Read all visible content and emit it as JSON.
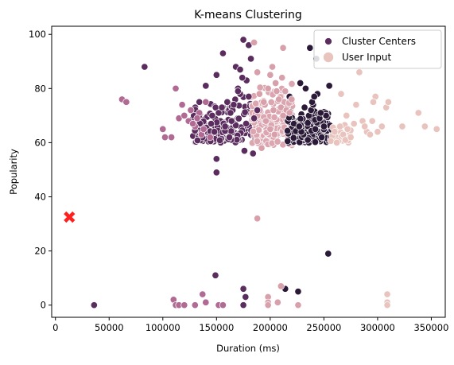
{
  "chart_data": {
    "type": "scatter",
    "title": "K-means Clustering",
    "xlabel": "Duration (ms)",
    "ylabel": "Popularity",
    "xlim": [
      -3500,
      363000
    ],
    "ylim": [
      -4.5,
      103
    ],
    "xticks": [
      0,
      50000,
      100000,
      150000,
      200000,
      250000,
      300000,
      350000
    ],
    "xtick_labels": [
      "0",
      "50000",
      "100000",
      "150000",
      "200000",
      "250000",
      "300000",
      "350000"
    ],
    "yticks": [
      0,
      20,
      40,
      60,
      80,
      100
    ],
    "ytick_labels": [
      "0",
      "20",
      "40",
      "60",
      "80",
      "100"
    ],
    "grid": false,
    "legend": {
      "placement": "top-right",
      "entries": [
        {
          "label": "Cluster Centers",
          "color": "#5b2d5e",
          "marker": "circle"
        },
        {
          "label": "User Input",
          "color": "#e9c3bd",
          "marker": "circle"
        }
      ]
    },
    "series": [
      {
        "cluster": 0,
        "color": "#2a1a38",
        "points": [
          [
            243000,
            91
          ],
          [
            236000,
            70
          ],
          [
            238000,
            72
          ],
          [
            240000,
            74
          ],
          [
            246000,
            69
          ],
          [
            244000,
            78
          ],
          [
            250000,
            66
          ],
          [
            252000,
            70
          ],
          [
            255000,
            81
          ],
          [
            232000,
            73
          ],
          [
            228000,
            82
          ],
          [
            218000,
            77
          ],
          [
            222000,
            67
          ],
          [
            242000,
            65
          ],
          [
            254000,
            19
          ],
          [
            226000,
            5
          ],
          [
            214000,
            6
          ],
          [
            247000,
            71
          ],
          [
            235000,
            61
          ],
          [
            248000,
            62
          ],
          [
            231000,
            63
          ],
          [
            229000,
            64
          ],
          [
            227000,
            66
          ],
          [
            239000,
            75
          ],
          [
            241000,
            77
          ],
          [
            237000,
            95
          ],
          [
            233000,
            80
          ]
        ]
      },
      {
        "cluster": 1,
        "color": "#5b2d5e",
        "points": [
          [
            140000,
            81
          ],
          [
            150000,
            85
          ],
          [
            156000,
            93
          ],
          [
            160000,
            75
          ],
          [
            165000,
            72
          ],
          [
            168000,
            88
          ],
          [
            170000,
            80
          ],
          [
            172000,
            78
          ],
          [
            175000,
            98
          ],
          [
            178000,
            83
          ],
          [
            180000,
            77
          ],
          [
            182000,
            91
          ],
          [
            176000,
            57
          ],
          [
            184000,
            56
          ],
          [
            150000,
            54
          ],
          [
            150000,
            49
          ],
          [
            148000,
            64
          ],
          [
            146000,
            70
          ],
          [
            152000,
            71
          ],
          [
            158000,
            66
          ],
          [
            162000,
            62
          ],
          [
            164000,
            68
          ],
          [
            166000,
            74
          ],
          [
            180000,
            96
          ],
          [
            174000,
            84
          ],
          [
            163000,
            71
          ],
          [
            155000,
            73
          ],
          [
            145000,
            67
          ],
          [
            185000,
            69
          ],
          [
            188000,
            72
          ],
          [
            83000,
            88
          ],
          [
            149000,
            11
          ],
          [
            175000,
            6
          ],
          [
            177000,
            3
          ],
          [
            36000,
            0
          ],
          [
            152000,
            0
          ],
          [
            175000,
            0
          ],
          [
            170000,
            79
          ],
          [
            172000,
            87
          ]
        ]
      },
      {
        "cluster": 2,
        "color": "#b06a93",
        "points": [
          [
            62000,
            76
          ],
          [
            66000,
            75
          ],
          [
            100000,
            65
          ],
          [
            102000,
            62
          ],
          [
            108000,
            62
          ],
          [
            112000,
            80
          ],
          [
            115000,
            69
          ],
          [
            118000,
            74
          ],
          [
            120000,
            70
          ],
          [
            124000,
            68
          ],
          [
            126000,
            72
          ],
          [
            130000,
            66
          ],
          [
            134000,
            71
          ],
          [
            136000,
            63
          ],
          [
            138000,
            65
          ],
          [
            140000,
            75
          ],
          [
            144000,
            62
          ],
          [
            110000,
            2
          ],
          [
            112000,
            0
          ],
          [
            115000,
            0
          ],
          [
            120000,
            0
          ],
          [
            130000,
            0
          ],
          [
            137000,
            4
          ],
          [
            140000,
            1
          ],
          [
            152000,
            0
          ],
          [
            156000,
            0
          ],
          [
            128000,
            67
          ],
          [
            132000,
            69
          ]
        ]
      },
      {
        "cluster": 3,
        "color": "#d8a0ab",
        "points": [
          [
            185000,
            97
          ],
          [
            188000,
            86
          ],
          [
            190000,
            78
          ],
          [
            195000,
            74
          ],
          [
            198000,
            80
          ],
          [
            200000,
            85
          ],
          [
            202000,
            88
          ],
          [
            205000,
            82
          ],
          [
            208000,
            76
          ],
          [
            210000,
            73
          ],
          [
            212000,
            95
          ],
          [
            215000,
            72
          ],
          [
            218000,
            71
          ],
          [
            220000,
            76
          ],
          [
            196000,
            68
          ],
          [
            200000,
            65
          ],
          [
            204000,
            63
          ],
          [
            188000,
            32
          ],
          [
            198000,
            3
          ],
          [
            198000,
            1
          ],
          [
            198000,
            0
          ],
          [
            210000,
            7
          ],
          [
            207000,
            1
          ],
          [
            226000,
            0
          ],
          [
            206000,
            79
          ],
          [
            212000,
            70
          ],
          [
            192000,
            58
          ],
          [
            194000,
            75
          ],
          [
            203000,
            72
          ],
          [
            211000,
            84
          ],
          [
            214000,
            79
          ]
        ]
      },
      {
        "cluster": 4,
        "color": "#e9c3bd",
        "points": [
          [
            260000,
            64
          ],
          [
            262000,
            60
          ],
          [
            265000,
            66
          ],
          [
            268000,
            63
          ],
          [
            270000,
            61
          ],
          [
            272000,
            65
          ],
          [
            275000,
            62
          ],
          [
            278000,
            67
          ],
          [
            280000,
            74
          ],
          [
            283000,
            86
          ],
          [
            286000,
            68
          ],
          [
            290000,
            64
          ],
          [
            293000,
            63
          ],
          [
            295000,
            68
          ],
          [
            298000,
            77
          ],
          [
            300000,
            64
          ],
          [
            304000,
            66
          ],
          [
            308000,
            73
          ],
          [
            310000,
            75
          ],
          [
            323000,
            66
          ],
          [
            338000,
            71
          ],
          [
            344000,
            66
          ],
          [
            355000,
            65
          ],
          [
            296000,
            75
          ],
          [
            309000,
            4
          ],
          [
            309000,
            1
          ],
          [
            309000,
            0
          ],
          [
            266000,
            78
          ],
          [
            271000,
            70
          ],
          [
            288000,
            66
          ]
        ]
      },
      {
        "cluster": "user",
        "color": "#ff2020",
        "marker": "X",
        "points": [
          [
            13000,
            32.5
          ]
        ]
      }
    ],
    "dense_regions": [
      {
        "cluster": 1,
        "color": "#5b2d5e",
        "x": [
          128000,
          190000
        ],
        "y": [
          60,
          78
        ],
        "n": 160
      },
      {
        "cluster": 3,
        "color": "#dba6b0",
        "x": [
          183000,
          222000
        ],
        "y": [
          59,
          84
        ],
        "n": 190
      },
      {
        "cluster": 0,
        "color": "#2a1a38",
        "x": [
          216000,
          258000
        ],
        "y": [
          60,
          72
        ],
        "n": 170
      },
      {
        "cluster": 4,
        "color": "#e9c3bd",
        "x": [
          256000,
          275000
        ],
        "y": [
          60,
          68
        ],
        "n": 28
      }
    ]
  }
}
